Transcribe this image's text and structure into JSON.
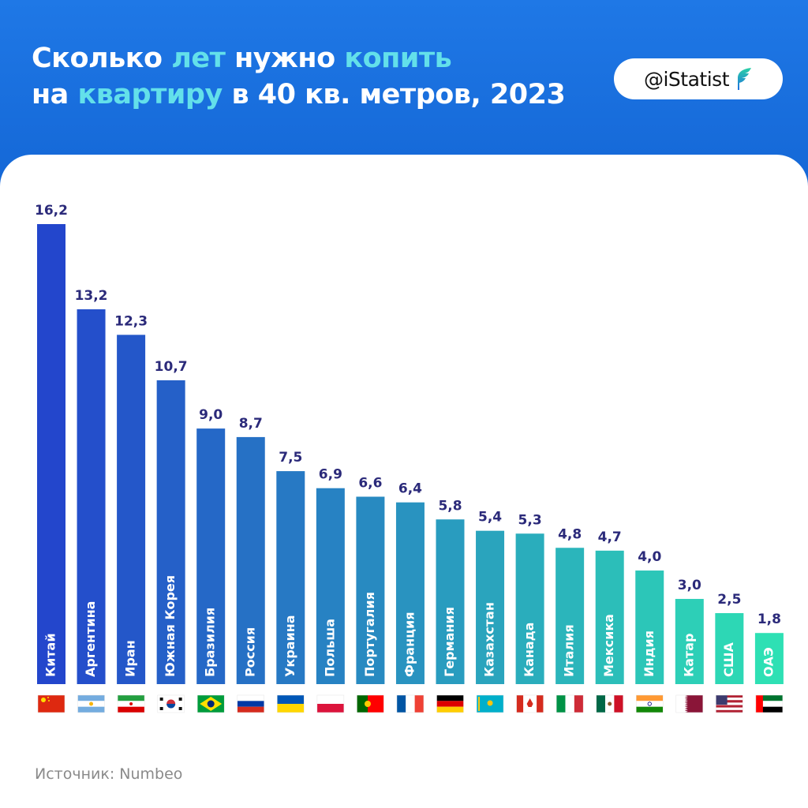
{
  "header": {
    "title_line1_a": "Сколько ",
    "title_line1_hl1": "лет",
    "title_line1_b": " нужно ",
    "title_line1_hl2": "копить",
    "title_line2_a": "на ",
    "title_line2_hl": "квартиру",
    "title_line2_b": " в 40 кв. метров, 2023",
    "brand": "@iStatist",
    "brand_icon": "feather-logo-icon"
  },
  "footer": {
    "source": "Источник: Numbeo"
  },
  "colors": {
    "header_bg": "#1a70e0",
    "title_highlight": "#63e0ea",
    "value_label": "#2b2a7a",
    "bar_gradient_start": "#2346cc",
    "bar_gradient_end": "#2ee0b4"
  },
  "chart_data": {
    "type": "bar",
    "title": "Сколько лет нужно копить на квартиру в 40 кв. метров, 2023",
    "xlabel": "",
    "ylabel": "",
    "ylim": [
      0,
      16.2
    ],
    "grid": false,
    "legend": "none",
    "categories": [
      "Китай",
      "Аргентина",
      "Иран",
      "Южная Корея",
      "Бразилия",
      "Россия",
      "Украина",
      "Польша",
      "Португалия",
      "Франция",
      "Германия",
      "Казахстан",
      "Канада",
      "Италия",
      "Мексика",
      "Индия",
      "Катар",
      "США",
      "ОАЭ"
    ],
    "values": [
      16.2,
      13.2,
      12.3,
      10.7,
      9.0,
      8.7,
      7.5,
      6.9,
      6.6,
      6.4,
      5.8,
      5.4,
      5.3,
      4.8,
      4.7,
      4.0,
      3.0,
      2.5,
      1.8
    ],
    "value_labels": [
      "16,2",
      "13,2",
      "12,3",
      "10,7",
      "9,0",
      "8,7",
      "7,5",
      "6,9",
      "6,6",
      "6,4",
      "5,8",
      "5,4",
      "5,3",
      "4,8",
      "4,7",
      "4,0",
      "3,0",
      "2,5",
      "1,8"
    ],
    "flags": [
      "china-flag-icon",
      "argentina-flag-icon",
      "iran-flag-icon",
      "south-korea-flag-icon",
      "brazil-flag-icon",
      "russia-flag-icon",
      "ukraine-flag-icon",
      "poland-flag-icon",
      "portugal-flag-icon",
      "france-flag-icon",
      "germany-flag-icon",
      "kazakhstan-flag-icon",
      "canada-flag-icon",
      "italy-flag-icon",
      "mexico-flag-icon",
      "india-flag-icon",
      "qatar-flag-icon",
      "usa-flag-icon",
      "uae-flag-icon"
    ]
  }
}
